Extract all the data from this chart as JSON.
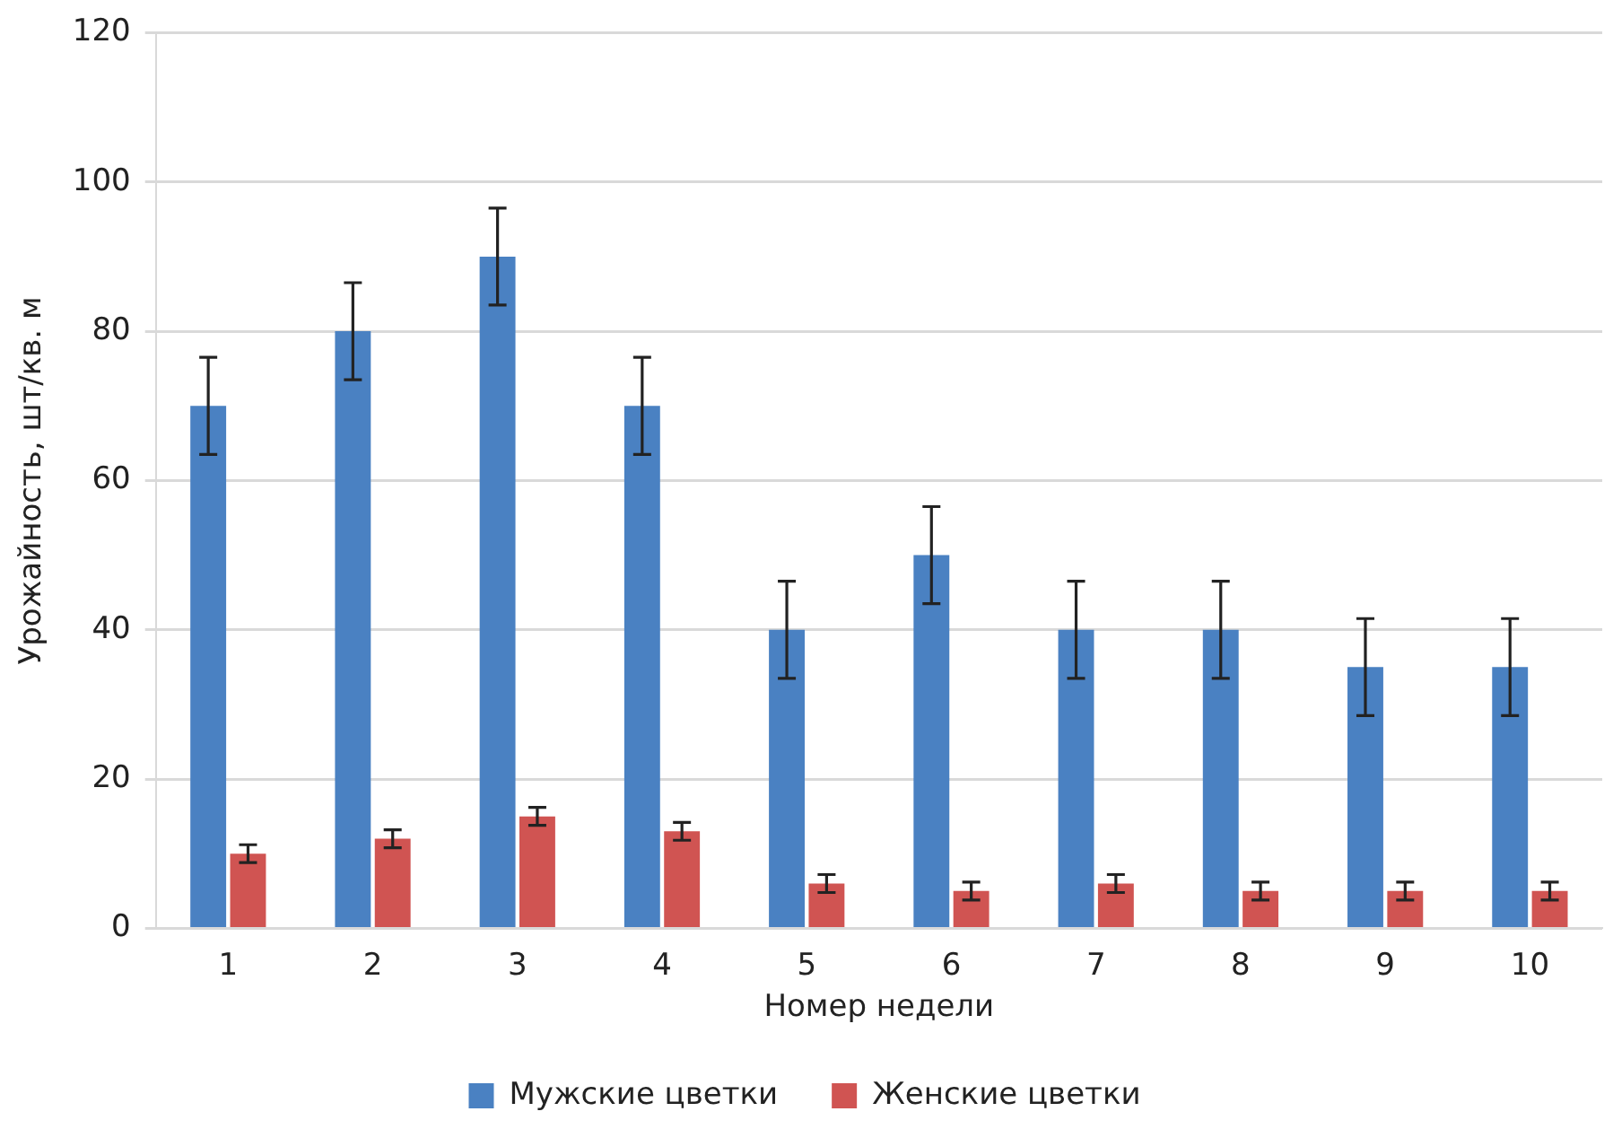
{
  "chart_data": {
    "type": "bar",
    "xlabel": "Номер недели",
    "ylabel": "Урожайность, шт/кв. м",
    "categories": [
      "1",
      "2",
      "3",
      "4",
      "5",
      "6",
      "7",
      "8",
      "9",
      "10"
    ],
    "series": [
      {
        "name": "Мужские цветки",
        "color": "#4a81c2",
        "values": [
          70,
          80,
          90,
          70,
          40,
          50,
          40,
          40,
          35,
          35
        ],
        "errors": [
          6.5,
          6.5,
          6.5,
          6.5,
          6.5,
          6.5,
          6.5,
          6.5,
          6.5,
          6.5
        ]
      },
      {
        "name": "Женские цветки",
        "color": "#d05452",
        "values": [
          10,
          12,
          15,
          13,
          6,
          5,
          6,
          5,
          5,
          5
        ],
        "errors": [
          1.2,
          1.2,
          1.2,
          1.2,
          1.2,
          1.2,
          1.2,
          1.2,
          1.2,
          1.2
        ]
      }
    ],
    "ylim": [
      0,
      120
    ],
    "yticks": [
      0,
      20,
      40,
      60,
      80,
      100,
      120
    ],
    "grid": "y",
    "legend": "bottom"
  }
}
